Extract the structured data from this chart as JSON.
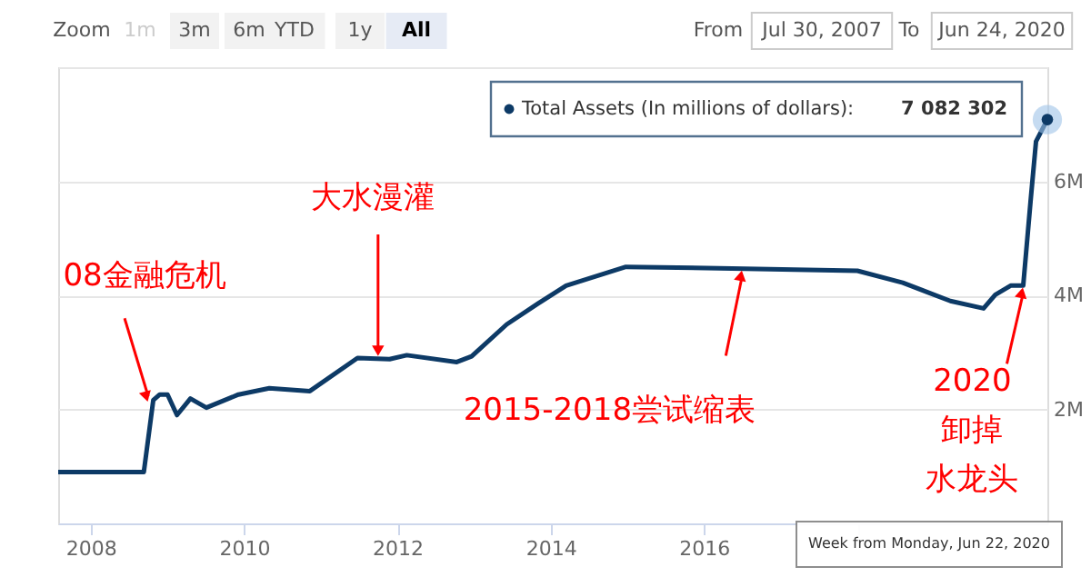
{
  "chart_data": {
    "type": "line",
    "x": [
      "2007-07-30",
      "2008-09-10",
      "2008-10-25",
      "2008-11-25",
      "2009-01-01",
      "2009-02-15",
      "2009-04-20",
      "2009-07-05",
      "2009-12-05",
      "2010-05-01",
      "2010-11-10",
      "2011-06-25",
      "2011-11-25",
      "2012-02-15",
      "2012-10-10",
      "2012-12-20",
      "2013-06-05",
      "2013-10-30",
      "2014-03-15",
      "2014-12-25",
      "2016-05-15",
      "2018-01-01",
      "2018-08-05",
      "2019-03-20",
      "2019-08-25",
      "2019-10-20",
      "2020-01-01",
      "2020-03-01",
      "2020-04-05",
      "2020-05-01",
      "2020-06-24"
    ],
    "series": [
      {
        "name": "Total Assets (In millions of dollars):",
        "color": "#0d3a66",
        "values": [
          900000,
          900000,
          2160000,
          2260000,
          2260000,
          1900000,
          2190000,
          2030000,
          2260000,
          2370000,
          2320000,
          2900000,
          2880000,
          2950000,
          2830000,
          2930000,
          3490000,
          3850000,
          4170000,
          4500000,
          4470000,
          4430000,
          4220000,
          3900000,
          3770000,
          4010000,
          4170000,
          4170000,
          5650000,
          6700000,
          7082302
        ],
        "value_labels": [
          null,
          null,
          null,
          null,
          null,
          null,
          null,
          null,
          null,
          null,
          null,
          null,
          null,
          null,
          null,
          null,
          null,
          null,
          null,
          null,
          null,
          null,
          null,
          null,
          null,
          null,
          null,
          null,
          null,
          null,
          "7 082 302"
        ]
      }
    ],
    "xlim": [
      "2007-07-30",
      "2020-06-24"
    ],
    "xticks": [
      "2008",
      "2010",
      "2012",
      "2014",
      "2016",
      {
        "value": "2018",
        "label": null
      }
    ],
    "ylim": [
      0,
      8000000
    ],
    "yticks": [
      {
        "value": 2000000,
        "label": "2M"
      },
      {
        "value": 4000000,
        "label": "4M"
      },
      {
        "value": 6000000,
        "label": "6M"
      },
      {
        "value": 8000000,
        "label": null
      }
    ],
    "grid": "y",
    "marker": "none",
    "annotations": [
      "Zoom",
      "1m",
      "3m",
      "6m",
      "YTD",
      "1y",
      "All",
      "From",
      "Jul 30, 2007",
      "To",
      "Jun 24, 2020",
      "Week from Monday, Jun 22, 2020",
      {
        "text": "08金融危机",
        "x": "2008-10",
        "y": 2100000
      },
      {
        "text": "大水漫灌",
        "x": "2011-10",
        "y": 2900000
      },
      {
        "text": "2015-2018尝试缩表",
        "x": "2016-07",
        "y": 4470000
      },
      {
        "text": "2020卸掉水龙头",
        "x": "2020-03",
        "y": 4170000
      }
    ]
  }
}
